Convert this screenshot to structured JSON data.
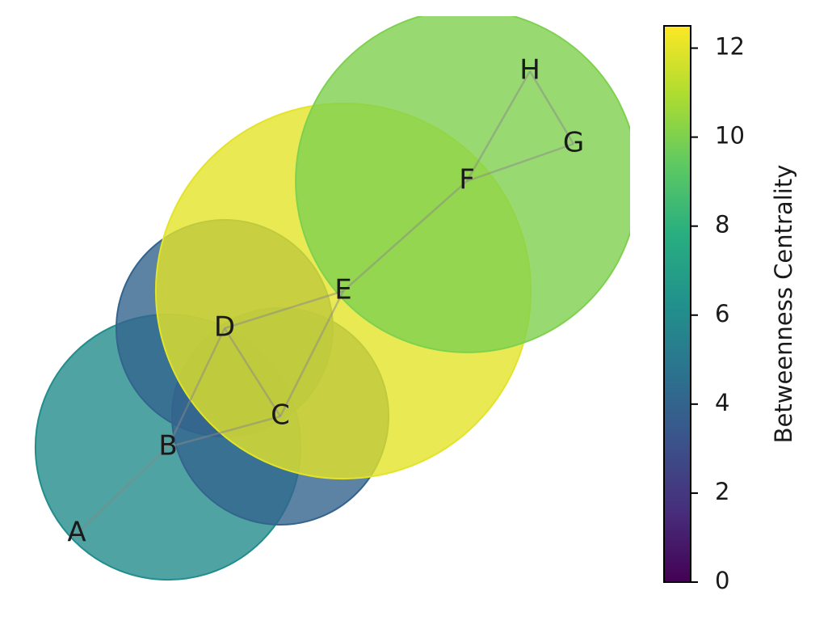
{
  "chart_data": {
    "type": "network",
    "nodes": [
      "A",
      "B",
      "C",
      "D",
      "E",
      "F",
      "G",
      "H"
    ],
    "values": [
      0,
      6,
      4,
      4,
      12,
      10,
      0,
      0
    ],
    "edges": [
      [
        0,
        1
      ],
      [
        1,
        2
      ],
      [
        1,
        3
      ],
      [
        2,
        3
      ],
      [
        3,
        4
      ],
      [
        2,
        4
      ],
      [
        4,
        5
      ],
      [
        5,
        6
      ],
      [
        5,
        7
      ],
      [
        6,
        7
      ]
    ],
    "colorbar_label": "Betweenness Centrality",
    "ylim": [
      0,
      12.5
    ],
    "yticks": [
      0,
      2,
      4,
      6,
      8,
      10,
      12
    ],
    "colormap": "viridis"
  }
}
